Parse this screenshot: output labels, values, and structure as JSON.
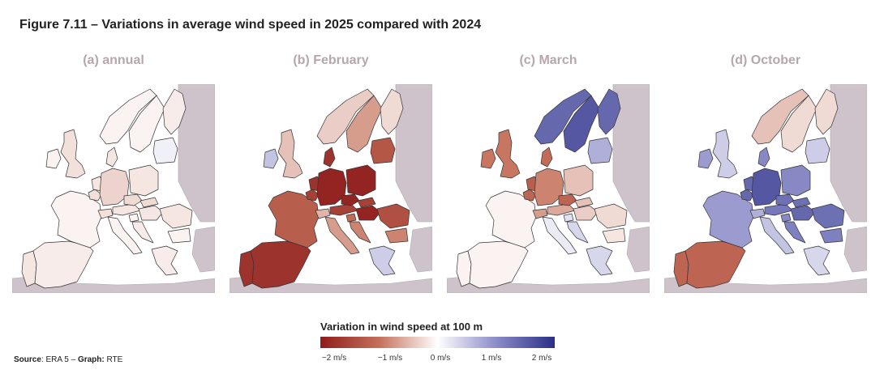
{
  "figure_title": "Figure 7.11 – Variations in average wind speed in 2025 compared with 2024",
  "panels": [
    {
      "label": "(a) annual"
    },
    {
      "label": "(b) February"
    },
    {
      "label": "(c) March"
    },
    {
      "label": "(d) October"
    }
  ],
  "legend": {
    "title": "Variation in wind speed at 100 m",
    "ticks": [
      "−2 m/s",
      "−1 m/s",
      "0 m/s",
      "1 m/s",
      "2 m/s"
    ],
    "tick_values": [
      -2,
      -1,
      0,
      1,
      2
    ],
    "range": [
      -2.3,
      2.3
    ],
    "colors": {
      "negative": "#8f1d1d",
      "neutral": "#ffffff",
      "positive": "#2a2f86",
      "no_data": "#cfc3cb"
    }
  },
  "source": {
    "label": "Source",
    "text": ": ERA 5 – ",
    "graph_label": "Graph:",
    "graph_text": " RTE"
  },
  "chart_data": {
    "type": "heatmap",
    "regions": [
      "Portugal",
      "Spain",
      "France",
      "United Kingdom",
      "Ireland",
      "Belgium",
      "Netherlands",
      "Germany",
      "Denmark",
      "Switzerland",
      "Austria",
      "Italy",
      "Czechia",
      "Poland",
      "Slovakia",
      "Hungary",
      "Slovenia",
      "Croatia",
      "Romania",
      "Bulgaria",
      "Greece",
      "Norway",
      "Sweden",
      "Finland",
      "Baltics"
    ],
    "series": [
      {
        "values": [
          -0.2,
          -0.15,
          -0.1,
          -0.25,
          -0.1,
          -0.25,
          -0.2,
          -0.35,
          -0.2,
          -0.25,
          -0.2,
          -0.1,
          -0.3,
          -0.2,
          -0.3,
          -0.2,
          -0.1,
          -0.15,
          -0.2,
          -0.1,
          -0.15,
          -0.1,
          -0.1,
          -0.15,
          0.15
        ]
      },
      {
        "values": [
          -2.0,
          -2.0,
          -1.4,
          -0.5,
          0.6,
          -1.8,
          -2.0,
          -2.2,
          -2.0,
          -0.6,
          -1.8,
          -0.8,
          -2.2,
          -2.2,
          -1.8,
          -2.2,
          -1.2,
          -1.0,
          -1.6,
          -1.0,
          0.5,
          -0.4,
          -0.8,
          -0.3,
          -1.5
        ]
      },
      {
        "values": [
          -0.1,
          -0.1,
          -0.1,
          -1.1,
          -1.1,
          -1.3,
          -1.4,
          -1.0,
          -1.2,
          -0.8,
          -0.7,
          0.2,
          -1.3,
          -0.5,
          -0.5,
          -0.4,
          0.3,
          0.4,
          -0.3,
          -0.2,
          0.4,
          1.6,
          1.8,
          1.6,
          0.8
        ]
      },
      {
        "values": [
          -1.3,
          -1.3,
          1.0,
          0.5,
          1.0,
          1.6,
          1.6,
          1.8,
          1.2,
          0.8,
          1.4,
          0.6,
          1.5,
          1.2,
          1.5,
          1.6,
          1.2,
          1.3,
          1.5,
          1.3,
          0.4,
          -0.5,
          -0.3,
          -0.3,
          0.5
        ]
      }
    ]
  }
}
